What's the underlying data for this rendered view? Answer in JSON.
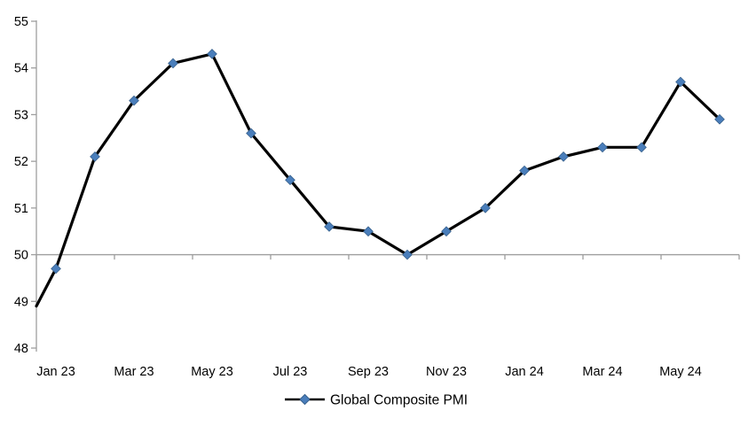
{
  "chart_data": {
    "type": "line",
    "title": "",
    "legend": {
      "label": "Global Composite PMI",
      "position": "bottom-center"
    },
    "series_name": "Global Composite PMI",
    "categories": [
      "Jan 23",
      "Feb 23",
      "Mar 23",
      "Apr 23",
      "May 23",
      "Jun 23",
      "Jul 23",
      "Aug 23",
      "Sep 23",
      "Oct 23",
      "Nov 23",
      "Dec 23",
      "Jan 24",
      "Feb 24",
      "Mar 24",
      "Apr 24",
      "May 24",
      "Jun 24"
    ],
    "values": [
      49.7,
      52.1,
      53.3,
      54.1,
      54.3,
      52.6,
      51.6,
      50.6,
      50.5,
      50.0,
      50.5,
      51.0,
      51.8,
      52.1,
      52.3,
      52.3,
      53.7,
      52.9
    ],
    "x_tick_labels_shown": [
      "Jan 23",
      "Mar 23",
      "May 23",
      "Jul 23",
      "Sep 23",
      "Nov 23",
      "Jan 24",
      "Mar 24",
      "May 24"
    ],
    "x_label_every": 2,
    "y_ticks": [
      48,
      49,
      50,
      51,
      52,
      53,
      54,
      55
    ],
    "ylim": [
      48,
      55
    ],
    "xlabel": "",
    "ylabel": "",
    "baseline_value": 50,
    "axis_entry_value": 48.9,
    "grid": "off",
    "marker_shape": "diamond",
    "colors": {
      "line": "#000000",
      "marker_fill": "#4A7EBB",
      "marker_stroke": "#38618C",
      "axis": "#9E9E9E",
      "text": "#000000",
      "background": "#FFFFFF"
    }
  }
}
